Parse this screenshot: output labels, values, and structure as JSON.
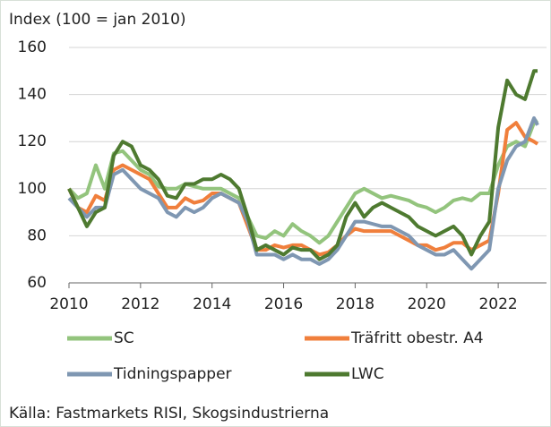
{
  "chart_data": {
    "type": "line",
    "title": "Index (100 = jan 2010)",
    "source": "Källa: Fastmarkets RISI, Skogsindustrierna",
    "x": [
      2010,
      2010.25,
      2010.5,
      2010.75,
      2011,
      2011.25,
      2011.5,
      2011.75,
      2012,
      2012.25,
      2012.5,
      2012.75,
      2013,
      2013.25,
      2013.5,
      2013.75,
      2014,
      2014.25,
      2014.5,
      2014.75,
      2015,
      2015.25,
      2015.5,
      2015.75,
      2016,
      2016.25,
      2016.5,
      2016.75,
      2017,
      2017.25,
      2017.5,
      2017.75,
      2018,
      2018.25,
      2018.5,
      2018.75,
      2019,
      2019.25,
      2019.5,
      2019.75,
      2020,
      2020.25,
      2020.5,
      2020.75,
      2021,
      2021.25,
      2021.5,
      2021.75,
      2022,
      2022.25,
      2022.5,
      2022.75,
      2023,
      2023.1
    ],
    "series": [
      {
        "name": "SC",
        "color": "#93c47d",
        "values": [
          100,
          96,
          98,
          110,
          100,
          115,
          116,
          112,
          108,
          106,
          101,
          100,
          100,
          102,
          101,
          100,
          100,
          100,
          98,
          96,
          88,
          80,
          79,
          82,
          80,
          85,
          82,
          80,
          77,
          80,
          86,
          92,
          98,
          100,
          98,
          96,
          97,
          96,
          95,
          93,
          92,
          90,
          92,
          95,
          96,
          95,
          98,
          98,
          110,
          118,
          120,
          118,
          128,
          129
        ]
      },
      {
        "name": "Träfritt obestr. A4",
        "color": "#f07f3c",
        "values": [
          100,
          92,
          90,
          97,
          95,
          108,
          110,
          108,
          106,
          104,
          98,
          92,
          92,
          96,
          94,
          95,
          98,
          98,
          96,
          94,
          84,
          74,
          74,
          76,
          75,
          76,
          76,
          74,
          72,
          73,
          76,
          80,
          83,
          82,
          82,
          82,
          82,
          80,
          78,
          76,
          76,
          74,
          75,
          77,
          77,
          74,
          76,
          78,
          98,
          125,
          128,
          122,
          120,
          119
        ]
      },
      {
        "name": "Tidningspapper",
        "color": "#7f97b2",
        "values": [
          96,
          92,
          88,
          92,
          92,
          106,
          108,
          104,
          100,
          98,
          96,
          90,
          88,
          92,
          90,
          92,
          96,
          98,
          96,
          94,
          86,
          72,
          72,
          72,
          70,
          72,
          70,
          70,
          68,
          70,
          74,
          80,
          86,
          86,
          85,
          84,
          84,
          82,
          80,
          76,
          74,
          72,
          72,
          74,
          70,
          66,
          70,
          74,
          100,
          112,
          118,
          120,
          130,
          127
        ]
      },
      {
        "name": "LWC",
        "color": "#4e7a30",
        "values": [
          100,
          92,
          84,
          90,
          92,
          114,
          120,
          118,
          110,
          108,
          104,
          97,
          96,
          102,
          102,
          104,
          104,
          106,
          104,
          100,
          88,
          74,
          76,
          74,
          72,
          75,
          74,
          74,
          70,
          72,
          76,
          88,
          94,
          88,
          92,
          94,
          92,
          90,
          88,
          84,
          82,
          80,
          82,
          84,
          80,
          72,
          80,
          86,
          126,
          146,
          140,
          138,
          150,
          150
        ]
      }
    ],
    "xlim": [
      2010,
      2023.35
    ],
    "xticks": [
      2010,
      2012,
      2014,
      2016,
      2018,
      2020,
      2022
    ],
    "ylim": [
      60,
      160
    ],
    "yticks": [
      60,
      80,
      100,
      120,
      140,
      160
    ],
    "grid": true,
    "legend": "bottom"
  }
}
